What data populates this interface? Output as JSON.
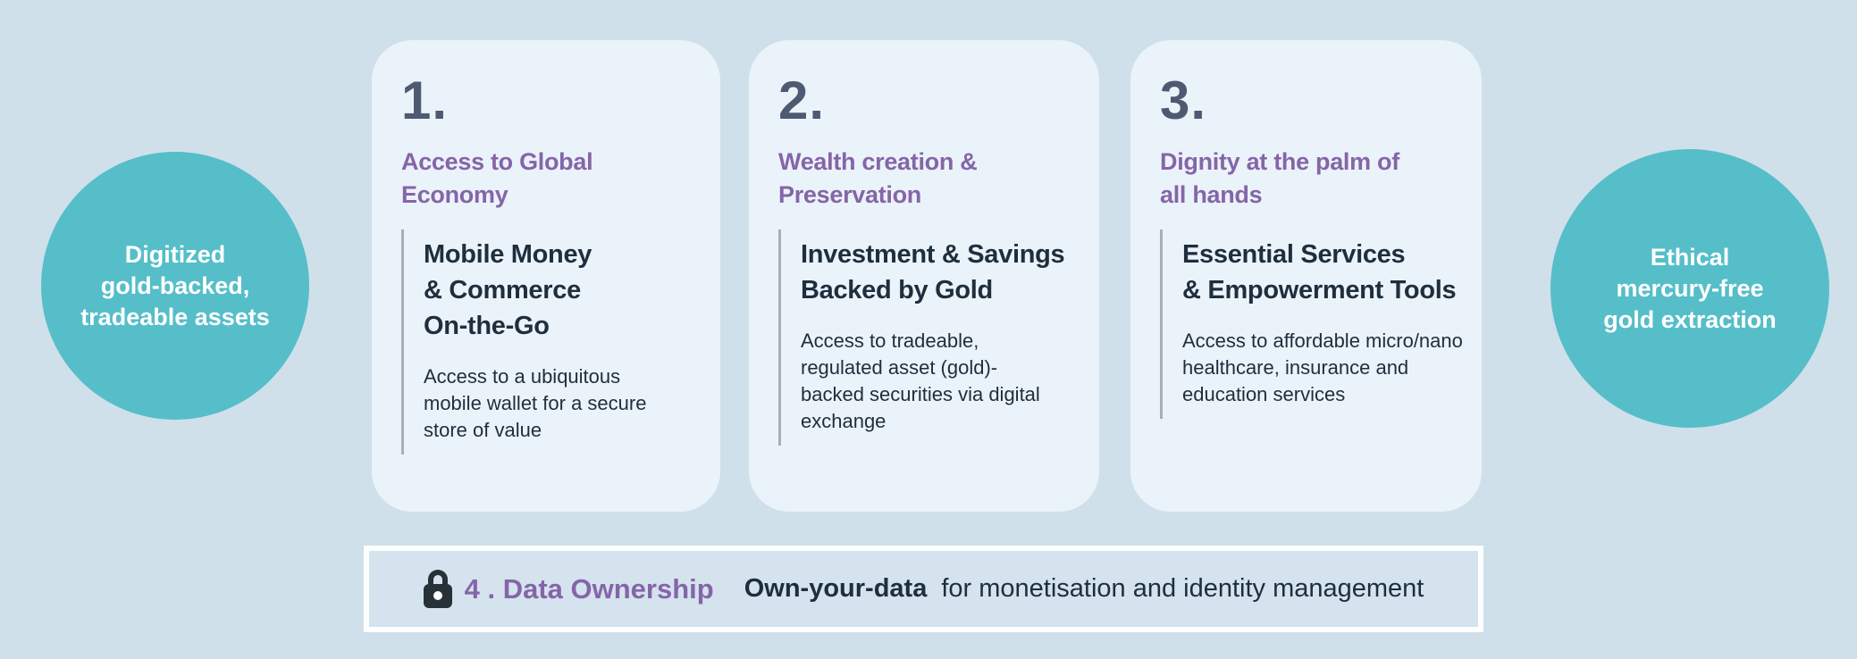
{
  "colors": {
    "background": "#cfe0eb",
    "card_background": "#eaf3f9",
    "circle_teal": "#55bec9",
    "accent_purple": "#8565a8",
    "dark_text": "#1f2e3d",
    "number_gray": "#4e5a71",
    "divider_gray": "#a8aeb4",
    "banner_border": "#fdfefe",
    "banner_background": "#d4e3ee",
    "lock_icon": "#263238"
  },
  "left_circle": {
    "lines": [
      "Digitized",
      "gold-backed,",
      "tradeable assets"
    ]
  },
  "right_circle": {
    "lines": [
      "Ethical",
      "mercury-free",
      "gold extraction"
    ]
  },
  "cards": [
    {
      "number": "1.",
      "title_lines": [
        "Access to Global",
        "Economy"
      ],
      "heading_lines": [
        "Mobile Money",
        "& Commerce",
        "On-the-Go"
      ],
      "body_lines": [
        "Access to a ubiquitous",
        "mobile wallet for a secure",
        "store of value"
      ]
    },
    {
      "number": "2.",
      "title_lines": [
        "Wealth creation &",
        "Preservation"
      ],
      "heading_lines": [
        "Investment & Savings",
        "Backed by Gold"
      ],
      "body_lines": [
        "Access to tradeable,",
        "regulated asset (gold)-",
        "backed securities via digital",
        "exchange"
      ]
    },
    {
      "number": "3.",
      "title_lines": [
        "Dignity at the palm of",
        "all hands"
      ],
      "heading_lines": [
        "Essential Services",
        "& Empowerment Tools"
      ],
      "body_lines": [
        "Access to affordable micro/nano",
        "healthcare, insurance and",
        "education services"
      ]
    }
  ],
  "banner": {
    "icon": "lock-icon",
    "number_label": "4 . Data Ownership",
    "bold_text": "Own-your-data",
    "rest_text": "for monetisation and identity management"
  }
}
